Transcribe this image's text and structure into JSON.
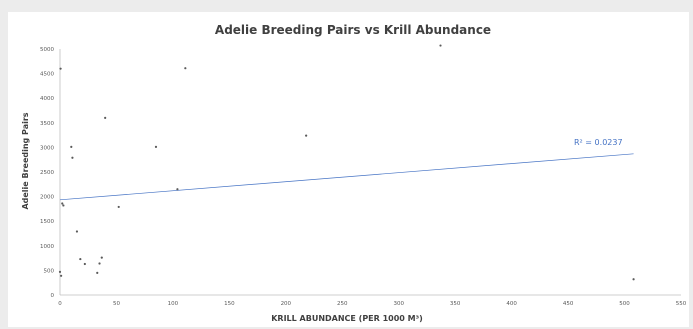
{
  "chart_data": {
    "type": "scatter",
    "title": "Adelie Breeding Pairs vs Krill Abundance",
    "xlabel": "KRILL ABUNDANCE (PER 1000 M³)",
    "ylabel": "Adelie Breeding Pairs",
    "xlim": [
      0,
      550
    ],
    "ylim": [
      0,
      5000
    ],
    "x_ticks": [
      0,
      50,
      100,
      150,
      200,
      250,
      300,
      350,
      400,
      450,
      500,
      550
    ],
    "y_ticks": [
      0,
      500,
      1000,
      1500,
      2000,
      2500,
      3000,
      3500,
      4000,
      4500,
      5000
    ],
    "grid": false,
    "series": [
      {
        "x": [
          0,
          0.5,
          1,
          2,
          3,
          10,
          11,
          15,
          18,
          22,
          33,
          35,
          37,
          40,
          52,
          85,
          104,
          111,
          218,
          337,
          508
        ],
        "y": [
          470,
          4600,
          390,
          1860,
          1820,
          3010,
          2790,
          1290,
          730,
          630,
          450,
          640,
          760,
          3600,
          1790,
          3010,
          2150,
          4610,
          3240,
          5070,
          320
        ]
      }
    ],
    "trendline": {
      "type": "linear",
      "x": [
        0,
        508
      ],
      "y": [
        1935,
        2870
      ],
      "label": "R² = 0.0237",
      "color": "#4472c4"
    },
    "colors": {
      "points": "#5a5a5a",
      "axis": "#bfbfbf"
    }
  }
}
